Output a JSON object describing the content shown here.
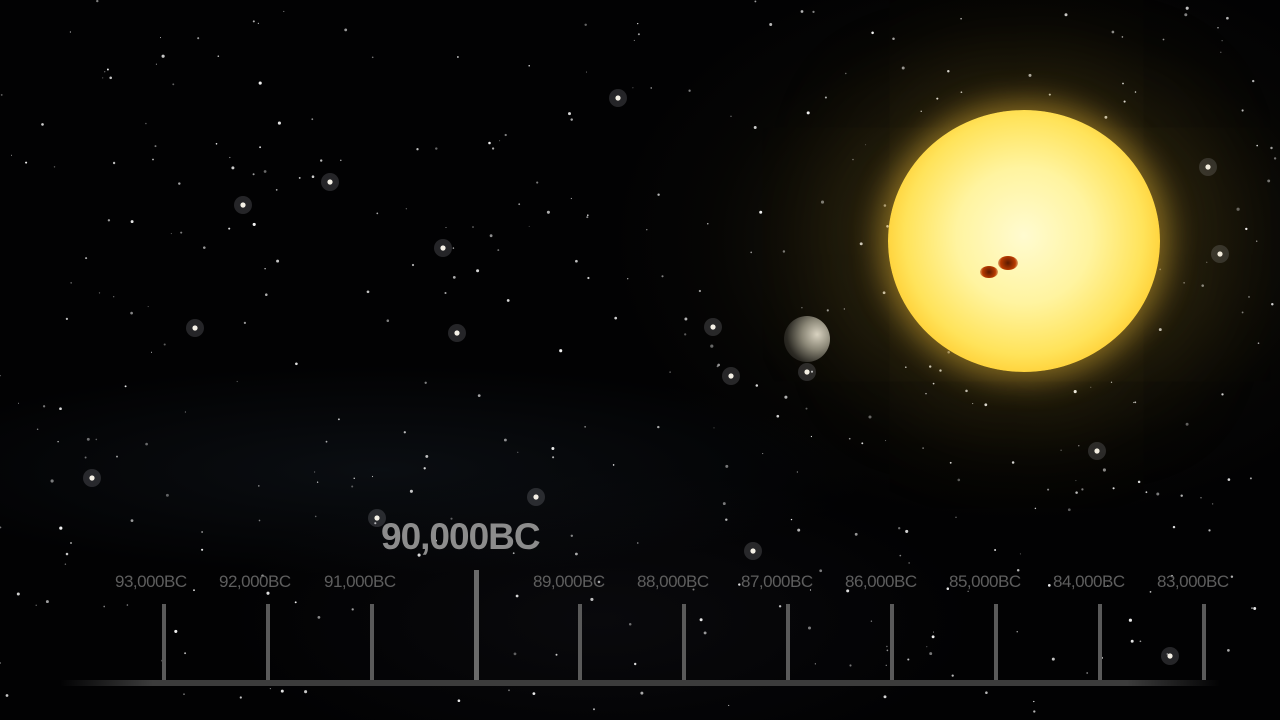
{
  "timeline": {
    "current_date": "90,000BC",
    "tick_labels": [
      {
        "label": "93,000BC"
      },
      {
        "label": "92,000BC"
      },
      {
        "label": "91,000BC"
      },
      {
        "label": "89,000BC"
      },
      {
        "label": "88,000BC"
      },
      {
        "label": "87,000BC"
      },
      {
        "label": "86,000BC"
      },
      {
        "label": "85,000BC"
      },
      {
        "label": "84,000BC"
      },
      {
        "label": "83,000BC"
      }
    ]
  },
  "colors": {
    "sun": "#ffe35a",
    "sun_rim": "#f49a08",
    "timeline_text": "#5e5e5e",
    "current_date_text": "#8c8c8c"
  }
}
